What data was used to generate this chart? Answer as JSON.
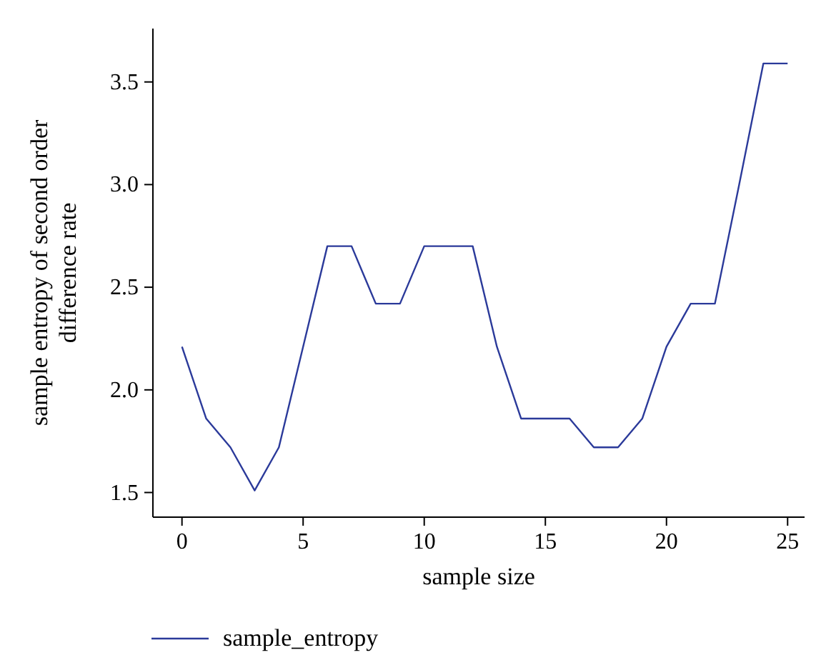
{
  "chart_data": {
    "type": "line",
    "xlabel": "sample size",
    "ylabel": "sample entropy of second order difference rate",
    "x": [
      0,
      1,
      2,
      3,
      4,
      5,
      6,
      7,
      8,
      9,
      10,
      11,
      12,
      13,
      14,
      15,
      16,
      17,
      18,
      19,
      20,
      21,
      22,
      23,
      24,
      25
    ],
    "series": [
      {
        "name": "sample_entropy",
        "color": "#2b3a9a",
        "values": [
          2.21,
          1.86,
          1.72,
          1.51,
          1.72,
          2.21,
          2.7,
          2.7,
          2.42,
          2.42,
          2.7,
          2.7,
          2.7,
          2.21,
          1.86,
          1.86,
          1.86,
          1.72,
          1.72,
          1.86,
          2.21,
          2.42,
          2.42,
          3.0,
          3.59,
          3.59
        ]
      }
    ],
    "xlim": [
      -1.2,
      25.7
    ],
    "ylim": [
      1.38,
      3.76
    ],
    "xticks": [
      0,
      5,
      10,
      15,
      20,
      25
    ],
    "yticks": [
      1.5,
      {
        "value": 2,
        "label": "2.0"
      },
      2.5,
      {
        "value": 3,
        "label": "3.0"
      },
      3.5
    ],
    "grid": false,
    "legend": "bottom left",
    "line_style": "solid"
  }
}
